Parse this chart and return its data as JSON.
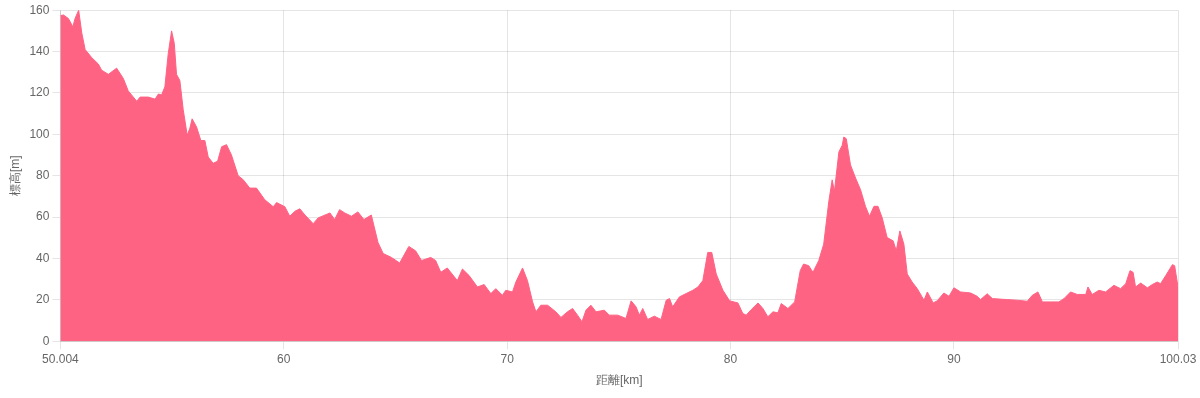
{
  "chart_data": {
    "type": "area",
    "xlabel": "距離[km]",
    "ylabel": "標高[m]",
    "x": [
      50.004,
      50.14,
      50.36,
      50.56,
      50.66,
      50.82,
      50.96,
      51.11,
      51.41,
      51.7,
      51.85,
      52.15,
      52.52,
      52.82,
      53.04,
      53.42,
      53.57,
      53.94,
      54.24,
      54.39,
      54.53,
      54.68,
      54.83,
      54.98,
      55.1,
      55.2,
      55.35,
      55.5,
      55.68,
      55.8,
      55.9,
      56.1,
      56.29,
      56.47,
      56.62,
      56.84,
      57.04,
      57.22,
      57.44,
      57.66,
      57.96,
      58.19,
      58.48,
      58.78,
      59.15,
      59.53,
      59.68,
      60.05,
      60.27,
      60.5,
      60.72,
      60.95,
      61.32,
      61.54,
      62.07,
      62.28,
      62.5,
      62.73,
      63.03,
      63.32,
      63.59,
      63.92,
      64.22,
      64.45,
      64.82,
      65.19,
      65.6,
      65.9,
      66.17,
      66.58,
      66.8,
      67.03,
      67.32,
      67.77,
      68.0,
      68.3,
      68.67,
      68.97,
      69.27,
      69.49,
      69.79,
      69.94,
      70.24,
      70.39,
      70.69,
      70.91,
      71.14,
      71.29,
      71.51,
      71.81,
      72.18,
      72.41,
      72.7,
      72.93,
      73.15,
      73.35,
      73.53,
      73.75,
      73.98,
      74.35,
      74.57,
      74.95,
      75.32,
      75.55,
      75.77,
      75.92,
      76.07,
      76.29,
      76.59,
      76.89,
      77.12,
      77.27,
      77.41,
      77.71,
      78.01,
      78.31,
      78.54,
      78.76,
      78.98,
      79.16,
      79.36,
      79.66,
      79.96,
      80.33,
      80.55,
      80.7,
      80.93,
      81.23,
      81.45,
      81.67,
      81.9,
      82.12,
      82.27,
      82.57,
      82.87,
      83.12,
      83.27,
      83.5,
      83.69,
      83.95,
      84.17,
      84.4,
      84.55,
      84.65,
      84.85,
      85.0,
      85.07,
      85.18,
      85.37,
      85.6,
      85.82,
      86.04,
      86.22,
      86.42,
      86.6,
      86.79,
      87.01,
      87.28,
      87.42,
      87.58,
      87.76,
      87.91,
      88.13,
      88.36,
      88.66,
      88.81,
      89.07,
      89.25,
      89.55,
      89.78,
      90.0,
      90.3,
      90.75,
      91.04,
      91.19,
      91.49,
      91.72,
      92.39,
      92.84,
      93.28,
      93.51,
      93.76,
      93.96,
      94.33,
      94.7,
      94.93,
      95.22,
      95.52,
      95.9,
      96.0,
      96.19,
      96.49,
      96.79,
      97.16,
      97.46,
      97.69,
      97.88,
      98.02,
      98.13,
      98.36,
      98.66,
      98.88,
      99.1,
      99.25,
      99.48,
      99.78,
      99.88,
      100.03
    ],
    "series": [
      {
        "color": "#ff6384",
        "values": [
          157.4,
          157.7,
          156,
          152,
          156,
          160,
          149,
          141,
          137,
          134,
          131,
          129,
          132,
          127,
          121,
          116,
          118,
          118,
          117,
          119.5,
          119,
          123,
          139,
          150,
          144,
          129,
          126,
          112,
          99.5,
          103,
          107.5,
          103.5,
          97,
          97,
          89,
          86,
          87,
          94,
          95,
          90,
          80,
          78,
          74,
          74,
          68.4,
          65,
          67,
          65,
          60.4,
          62.8,
          64,
          61,
          56.8,
          59.6,
          62,
          58.8,
          63.6,
          62,
          60.4,
          62.5,
          58.8,
          61,
          47.7,
          42.4,
          40.5,
          37.8,
          45.8,
          43.7,
          39,
          40.5,
          39,
          33.3,
          35.4,
          29.3,
          34.9,
          31.7,
          26.2,
          27.4,
          23,
          25.4,
          22.2,
          24.6,
          23.8,
          28.6,
          35.4,
          29.3,
          19,
          14.2,
          17.4,
          17.4,
          14.2,
          11.5,
          14.2,
          15.8,
          12.6,
          9.4,
          15,
          17.4,
          14.2,
          15,
          12.6,
          12.6,
          11,
          19.5,
          16.6,
          12.6,
          15.8,
          10.5,
          12.1,
          10.5,
          19.8,
          20.6,
          16.6,
          21.4,
          23,
          24.6,
          26.2,
          29.3,
          42.9,
          42.9,
          32.5,
          24.6,
          19.5,
          18.5,
          13.4,
          12.6,
          15.3,
          18.5,
          15.8,
          11.8,
          14.2,
          13.7,
          18.2,
          15.8,
          19,
          34.1,
          37.3,
          36.5,
          33.3,
          39,
          46.9,
          67.6,
          78,
          72.4,
          91.5,
          94.7,
          98.7,
          97.9,
          85.2,
          78.8,
          73.2,
          65.2,
          60.4,
          65.2,
          65.2,
          59.6,
          50.1,
          48.5,
          43.7,
          53.3,
          46.9,
          32.5,
          28.6,
          25.4,
          19.8,
          23.8,
          18.5,
          19.5,
          23.3,
          21.7,
          25.8,
          23.8,
          23.3,
          21.7,
          20.1,
          22.9,
          20.6,
          20.1,
          19.8,
          19.3,
          22.2,
          23.8,
          19,
          19,
          19,
          20.6,
          23.8,
          22.6,
          22.6,
          26.2,
          22.6,
          24.6,
          23.8,
          27,
          25.4,
          27.8,
          34.1,
          33.3,
          26.2,
          28.1,
          25.8,
          27.4,
          28.6,
          27.8,
          31.7,
          37,
          36.5,
          26.2
        ]
      }
    ],
    "xlim": [
      50.004,
      100.03
    ],
    "xticks": [
      50.004,
      60,
      70,
      80,
      90,
      100.03
    ],
    "ylim": [
      0,
      160
    ],
    "yticks": [
      0,
      20,
      40,
      60,
      80,
      100,
      120,
      140,
      160
    ],
    "grid": true,
    "legend": false,
    "marker": "none"
  }
}
